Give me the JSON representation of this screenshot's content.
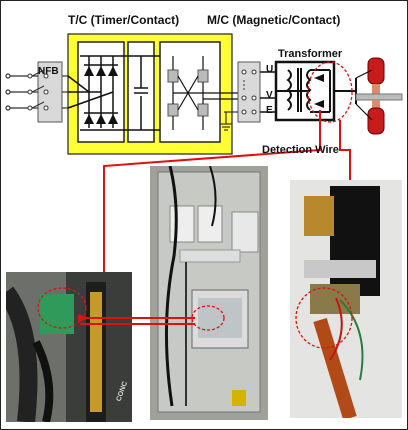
{
  "labels": {
    "tc": "T/C (Timer/Contact)",
    "mc": "M/C (Magnetic/Contact)",
    "nfb": "NFB",
    "transformer": "Transformer",
    "detection_wire": "Detection Wire",
    "u": "U",
    "v": "V",
    "e": "E",
    "cable_text": "CONC"
  },
  "colors": {
    "panel_yellow": "#ffff33",
    "wire_red": "#e01010",
    "highlight_circle": "#e01010"
  }
}
